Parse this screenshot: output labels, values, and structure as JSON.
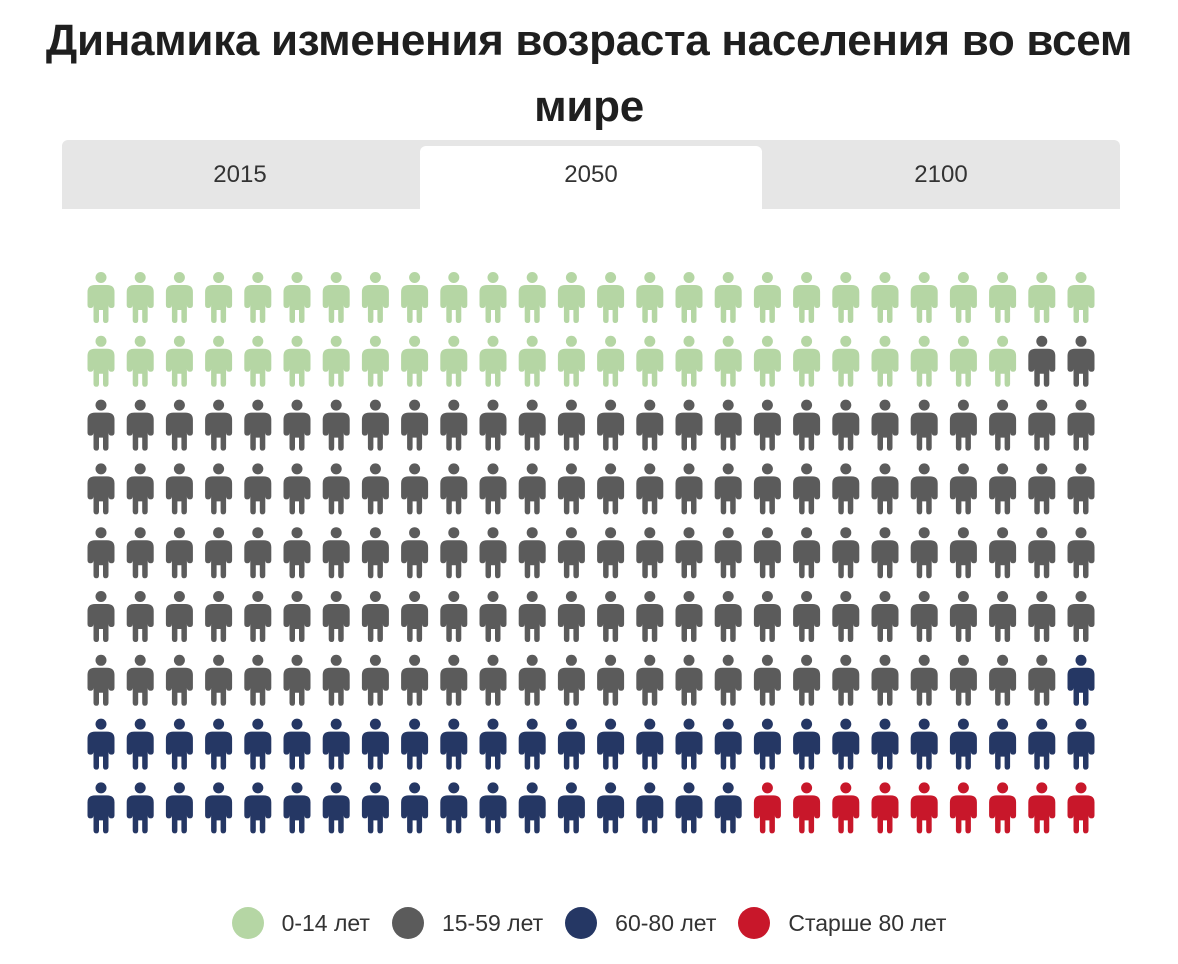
{
  "title": "Динамика изменения возраста населения во всем мире",
  "tabs": [
    {
      "label": "2015",
      "active": false
    },
    {
      "label": "2050",
      "active": true
    },
    {
      "label": "2100",
      "active": false
    }
  ],
  "colors": {
    "tab_bar": "#e6e6e6",
    "tab_active": "#ffffff"
  },
  "chart_data": {
    "type": "pictogram",
    "year": "2050",
    "columns": 26,
    "rows": 9,
    "total_icons": 234,
    "icon": "person-icon",
    "fill_order": "row-major, left-to-right, top-to-bottom",
    "series": [
      {
        "name": "0-14 лет",
        "count": 50,
        "color": "#b5d6a4"
      },
      {
        "name": "15-59 лет",
        "count": 131,
        "color": "#5b5b5b"
      },
      {
        "name": "60-80 лет",
        "count": 44,
        "color": "#253764"
      },
      {
        "name": "Старше 80 лет",
        "count": 9,
        "color": "#c8172a"
      }
    ],
    "legend_position": "bottom-center"
  }
}
